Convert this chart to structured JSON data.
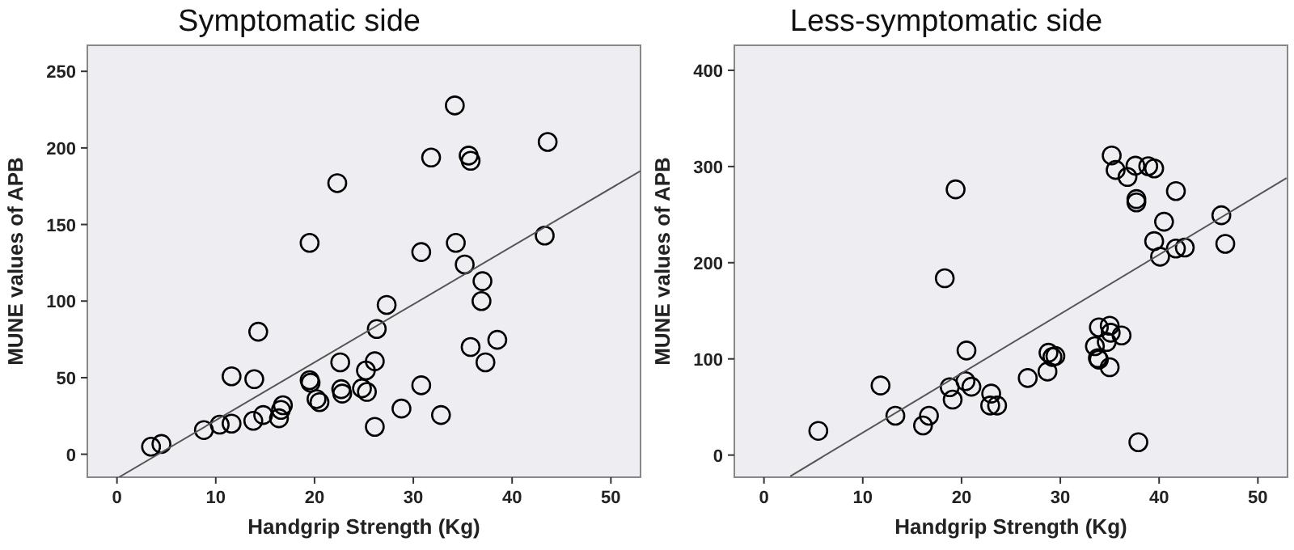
{
  "chart_data": [
    {
      "type": "scatter",
      "title": "Symptomatic side",
      "xlabel": "Handgrip Strength (Kg)",
      "ylabel": "MUNE values of APB",
      "xlim": [
        -3,
        53
      ],
      "ylim": [
        -15,
        267
      ],
      "xticks": [
        0,
        10,
        20,
        30,
        40,
        50
      ],
      "yticks": [
        0,
        50,
        100,
        150,
        200,
        250
      ],
      "series": [
        {
          "color": "#000000",
          "marker": "circle",
          "x": [
            3.45,
            4.5,
            8.8,
            10.4,
            11.6,
            11.6,
            13.8,
            14.8,
            13.9,
            14.3,
            16.4,
            16.6,
            16.8,
            19.5,
            19.5,
            19.6,
            20.2,
            20.5,
            22.3,
            22.6,
            22.7,
            22.8,
            24.8,
            25.2,
            25.3,
            26.1,
            26.3,
            26.1,
            27.3,
            28.8,
            30.8,
            30.8,
            31.8,
            32.8,
            34.2,
            34.3,
            35.2,
            35.6,
            35.8,
            35.8,
            37,
            36.9,
            37.3,
            38.5,
            43.3,
            43.6
          ],
          "values": [
            4.9,
            6.7,
            15.8,
            19.3,
            20,
            50.9,
            21.8,
            25.6,
            49,
            80,
            23.5,
            29,
            32,
            138,
            48.4,
            46.7,
            36,
            34,
            177,
            60,
            42.5,
            39.6,
            43,
            54.7,
            40.7,
            60.7,
            81.8,
            17.9,
            97.5,
            29.8,
            132,
            45,
            193.7,
            25.6,
            227.7,
            138,
            123.9,
            195,
            191.6,
            70,
            113,
            100,
            60,
            74.7,
            142.8,
            203.9
          ]
        },
        {
          "type": "line",
          "color": "#555555",
          "line_style": "solid",
          "marker": "none",
          "x": [
            0.2,
            53
          ],
          "values": [
            -15,
            185
          ]
        }
      ]
    },
    {
      "type": "scatter",
      "title": "Less-symptomatic side",
      "xlabel": "Handgrip Strength (Kg)",
      "ylabel": "MUNE values of APB",
      "xlim": [
        -3,
        53
      ],
      "ylim": [
        -23,
        426
      ],
      "xticks": [
        0,
        10,
        20,
        30,
        40,
        50
      ],
      "yticks": [
        0,
        100,
        200,
        300,
        400
      ],
      "series": [
        {
          "color": "#000000",
          "marker": "circle",
          "x": [
            5.5,
            11.8,
            13.3,
            16.1,
            16.7,
            18.3,
            19.4,
            18.8,
            19.1,
            20.4,
            20.5,
            21,
            23,
            22.9,
            23.6,
            26.7,
            28.7,
            28.8,
            29.2,
            29.5,
            33.5,
            33.9,
            33.8,
            33.9,
            34.7,
            35,
            35.1,
            35,
            36.2,
            35.2,
            35.6,
            36.8,
            37.6,
            37.7,
            37.7,
            37.9,
            38.9,
            39.5,
            39.5,
            40.1,
            40.5,
            41.7,
            41.7,
            42.6,
            46.3,
            46.7
          ],
          "values": [
            25.2,
            72.3,
            40.9,
            30.8,
            40.9,
            183.8,
            276.2,
            70.6,
            57.7,
            76.8,
            108.7,
            71.1,
            63.9,
            51.5,
            51.5,
            80.1,
            86.8,
            106.4,
            102,
            103,
            113.2,
            132.8,
            100.8,
            99.2,
            117.6,
            134.5,
            127.2,
            91.3,
            124.4,
            311.5,
            296.4,
            289.1,
            300.8,
            266.1,
            262.7,
            13.4,
            300.3,
            298,
            222.4,
            206.2,
            242.6,
            274.5,
            214.7,
            215.8,
            249.3,
            219.6
          ]
        },
        {
          "type": "line",
          "color": "#555555",
          "line_style": "solid",
          "marker": "none",
          "x": [
            2.66,
            52.9
          ],
          "values": [
            -22,
            288
          ]
        }
      ]
    }
  ]
}
